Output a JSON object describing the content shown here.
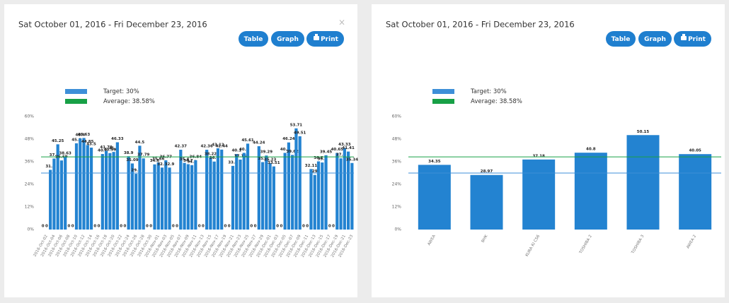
{
  "chart_data": [
    {
      "type": "bar",
      "title": "Sat October 01, 2016 - Fri December 23, 2016",
      "close": "×",
      "buttons": [
        "Table",
        "Graph",
        "Print"
      ],
      "categories": [
        null,
        "2016-Oct-02",
        null,
        "2016-Oct-04",
        null,
        "2016-Oct-06",
        null,
        "2016-Oct-08",
        null,
        "2016-Oct-10",
        null,
        "2016-Oct-12",
        null,
        "2016-Oct-14",
        null,
        "2016-Oct-16",
        null,
        "2016-Oct-18",
        null,
        "2016-Oct-20",
        null,
        "2016-Oct-22",
        null,
        "2016-Oct-24",
        null,
        "2016-Oct-26",
        null,
        "2016-Oct-28",
        null,
        "2016-Oct-30",
        null,
        "2016-Nov-01",
        null,
        "2016-Nov-03",
        null,
        "2016-Nov-05",
        null,
        "2016-Nov-07",
        null,
        "2016-Nov-09",
        null,
        "2016-Nov-11",
        null,
        "2016-Nov-13",
        null,
        "2016-Nov-15",
        null,
        "2016-Nov-17",
        null,
        "2016-Nov-19",
        null,
        "2016-Nov-21",
        null,
        "2016-Nov-23",
        null,
        "2016-Nov-25",
        null,
        "2016-Nov-27",
        null,
        "2016-Nov-29",
        null,
        "2016-Dec-01",
        null,
        "2016-Dec-03",
        null,
        "2016-Dec-05",
        null,
        "2016-Dec-07",
        null,
        "2016-Dec-09",
        null,
        "2016-Dec-11",
        null,
        "2016-Dec-13",
        null,
        "2016-Dec-15",
        null,
        "2016-Dec-17",
        null,
        "2016-Dec-19",
        null,
        "2016-Dec-21",
        null,
        "2016-Dec-23"
      ],
      "values": [
        0,
        0,
        31.7,
        37.7,
        45.25,
        36.69,
        38.63,
        0,
        0,
        45.8,
        48.4,
        48.63,
        44.85,
        43.5,
        0,
        0,
        40.1,
        41.79,
        40.59,
        41.2,
        46.33,
        0,
        0,
        38.9,
        35.09,
        29.6,
        44.5,
        37.79,
        0,
        0,
        34.6,
        35.66,
        32.9,
        36.77,
        32.9,
        0,
        0,
        42.37,
        35.4,
        34.7,
        34.2,
        36.84,
        0,
        0,
        42.36,
        38.22,
        36.1,
        43.12,
        42.44,
        0,
        0,
        33.8,
        40.1,
        37.15,
        40.7,
        45.61,
        0,
        0,
        44.24,
        35.8,
        39.29,
        35.23,
        33.51,
        0,
        0,
        40.7,
        46.24,
        39.62,
        53.71,
        49.51,
        0,
        0,
        32.11,
        29.0,
        36.2,
        35.6,
        39.45,
        0,
        0,
        40.65,
        37.8,
        43.33,
        41.41,
        35.34
      ],
      "color": "#2383d1",
      "reference_lines": [
        {
          "name": "Target: 30%",
          "value": 30,
          "color": "#3d8fd8"
        },
        {
          "name": "Average: 38.58%",
          "value": 38.58,
          "color": "#17a046"
        }
      ],
      "ylim": [
        0,
        60
      ],
      "yticks": [
        {
          "value": 0,
          "label": "0%"
        },
        {
          "value": 12,
          "label": "12%"
        },
        {
          "value": 24,
          "label": "24%"
        },
        {
          "value": 36,
          "label": "36%"
        },
        {
          "value": 48,
          "label": "48%"
        },
        {
          "value": 60,
          "label": "60%"
        }
      ],
      "grid": false
    },
    {
      "type": "bar",
      "title": "Sat October 01, 2016 - Fri December 23, 2016",
      "buttons": [
        "Table",
        "Graph",
        "Print"
      ],
      "categories": [
        "AWEA",
        "BHK",
        "KURA KI CS6",
        "TOSHIBA 2",
        "TOSHIBA 3",
        "AWEA 2"
      ],
      "values": [
        34.35,
        28.97,
        37.18,
        40.8,
        50.15,
        40.05
      ],
      "color": "#2383d1",
      "reference_lines": [
        {
          "name": "Target: 30%",
          "value": 30,
          "color": "#3d8fd8"
        },
        {
          "name": "Average: 38.58%",
          "value": 38.58,
          "color": "#17a046"
        }
      ],
      "ylim": [
        0,
        60
      ],
      "yticks": [
        {
          "value": 0,
          "label": "0%"
        },
        {
          "value": 12,
          "label": "12%"
        },
        {
          "value": 24,
          "label": "24%"
        },
        {
          "value": 36,
          "label": "36%"
        },
        {
          "value": 48,
          "label": "48%"
        },
        {
          "value": 60,
          "label": "60%"
        }
      ],
      "grid": false
    }
  ]
}
